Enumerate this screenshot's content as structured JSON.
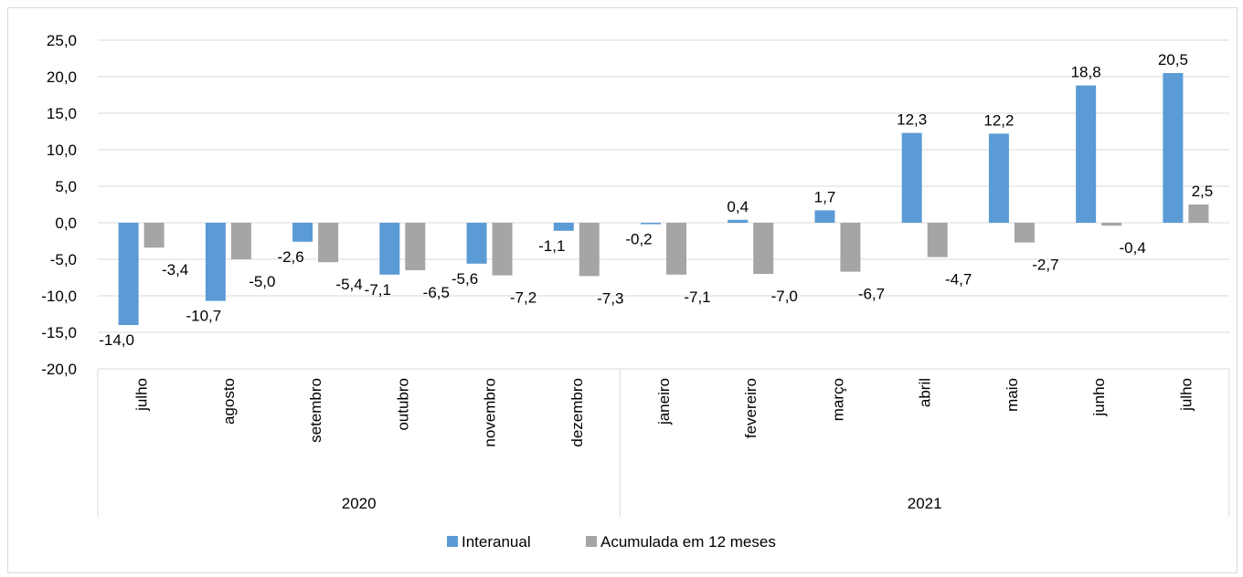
{
  "chart_data": {
    "type": "bar",
    "categories": [
      "julho",
      "agosto",
      "setembro",
      "outubro",
      "novembro",
      "dezembro",
      "janeiro",
      "fevereiro",
      "março",
      "abril",
      "maio",
      "junho",
      "julho"
    ],
    "groups": [
      {
        "label": "2020",
        "count": 6
      },
      {
        "label": "2021",
        "count": 7
      }
    ],
    "series": [
      {
        "name": "Interanual",
        "color": "#5b9bd5",
        "values": [
          -14.0,
          -10.7,
          -2.6,
          -7.1,
          -5.6,
          -1.1,
          -0.2,
          0.4,
          1.7,
          12.3,
          12.2,
          18.8,
          20.5
        ],
        "labels": [
          "-14,0",
          "-10,7",
          "-2,6",
          "-7,1",
          "-5,6",
          "-1,1",
          "-0,2",
          "0,4",
          "1,7",
          "12,3",
          "12,2",
          "18,8",
          "20,5"
        ]
      },
      {
        "name": "Acumulada em 12 meses",
        "color": "#a5a5a5",
        "values": [
          -3.4,
          -5.0,
          -5.4,
          -6.5,
          -7.2,
          -7.3,
          -7.1,
          -7.0,
          -6.7,
          -4.7,
          -2.7,
          -0.4,
          2.5
        ],
        "labels": [
          "-3,4",
          "-5,0",
          "-5,4",
          "-6,5",
          "-7,2",
          "-7,3",
          "-7,1",
          "-7,0",
          "-6,7",
          "-4,7",
          "-2,7",
          "-0,4",
          "2,5"
        ]
      }
    ],
    "ylim": [
      -20,
      25
    ],
    "yticks": [
      "-20,0",
      "-15,0",
      "-10,0",
      "-5,0",
      "0,0",
      "5,0",
      "10,0",
      "15,0",
      "20,0",
      "25,0"
    ],
    "ytick_values": [
      -20,
      -15,
      -10,
      -5,
      0,
      5,
      10,
      15,
      20,
      25
    ],
    "grid": true,
    "legend": "bottom",
    "title": "",
    "xlabel": "",
    "ylabel": ""
  }
}
